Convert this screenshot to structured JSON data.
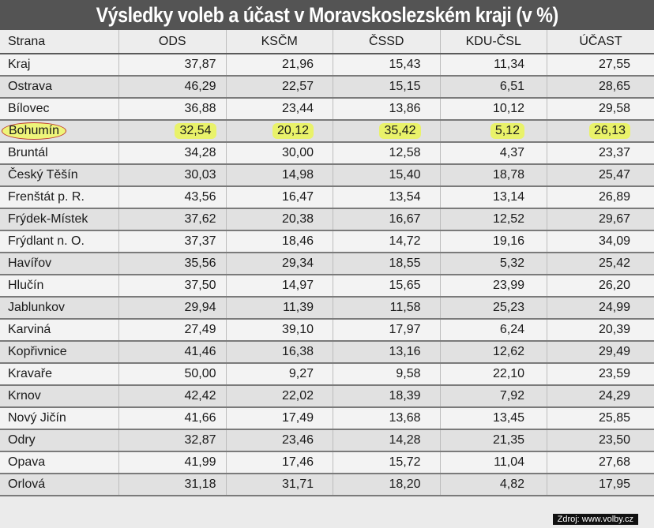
{
  "title": "Výsledky voleb a účast v Moravskoslezském kraji (v %)",
  "columns": [
    "Strana",
    "ODS",
    "KSČM",
    "ČSSD",
    "KDU-ČSL",
    "ÚČAST"
  ],
  "rows": [
    {
      "name": "Kraj",
      "v": [
        "37,87",
        "21,96",
        "15,43",
        "11,34",
        "27,55"
      ]
    },
    {
      "name": "Ostrava",
      "v": [
        "46,29",
        "22,57",
        "15,15",
        "6,51",
        "28,65"
      ]
    },
    {
      "name": "Bílovec",
      "v": [
        "36,88",
        "23,44",
        "13,86",
        "10,12",
        "29,58"
      ]
    },
    {
      "name": "Bohumín",
      "v": [
        "32,54",
        "20,12",
        "35,42",
        "5,12",
        "26,13"
      ]
    },
    {
      "name": "Bruntál",
      "v": [
        "34,28",
        "30,00",
        "12,58",
        "4,37",
        "23,37"
      ]
    },
    {
      "name": "Český Těšín",
      "v": [
        "30,03",
        "14,98",
        "15,40",
        "18,78",
        "25,47"
      ]
    },
    {
      "name": "Frenštát p. R.",
      "v": [
        "43,56",
        "16,47",
        "13,54",
        "13,14",
        "26,89"
      ]
    },
    {
      "name": "Frýdek-Místek",
      "v": [
        "37,62",
        "20,38",
        "16,67",
        "12,52",
        "29,67"
      ]
    },
    {
      "name": "Frýdlant n. O.",
      "v": [
        "37,37",
        "18,46",
        "14,72",
        "19,16",
        "34,09"
      ]
    },
    {
      "name": "Havířov",
      "v": [
        "35,56",
        "29,34",
        "18,55",
        "5,32",
        "25,42"
      ]
    },
    {
      "name": "Hlučín",
      "v": [
        "37,50",
        "14,97",
        "15,65",
        "23,99",
        "26,20"
      ]
    },
    {
      "name": "Jablunkov",
      "v": [
        "29,94",
        "11,39",
        "11,58",
        "25,23",
        "24,99"
      ]
    },
    {
      "name": "Karviná",
      "v": [
        "27,49",
        "39,10",
        "17,97",
        "6,24",
        "20,39"
      ]
    },
    {
      "name": "Kopřivnice",
      "v": [
        "41,46",
        "16,38",
        "13,16",
        "12,62",
        "29,49"
      ]
    },
    {
      "name": "Kravaře",
      "v": [
        "50,00",
        "9,27",
        "9,58",
        "22,10",
        "23,59"
      ]
    },
    {
      "name": "Krnov",
      "v": [
        "42,42",
        "22,02",
        "18,39",
        "7,92",
        "24,29"
      ]
    },
    {
      "name": "Nový Jičín",
      "v": [
        "41,66",
        "17,49",
        "13,68",
        "13,45",
        "25,85"
      ]
    },
    {
      "name": "Odry",
      "v": [
        "32,87",
        "23,46",
        "14,28",
        "21,35",
        "23,50"
      ]
    },
    {
      "name": "Opava",
      "v": [
        "41,99",
        "17,46",
        "15,72",
        "11,04",
        "27,68"
      ]
    },
    {
      "name": "Orlová",
      "v": [
        "31,18",
        "31,71",
        "18,20",
        "4,82",
        "17,95"
      ]
    }
  ],
  "source": "Zdroj: www.volby.cz",
  "colors": {
    "highlight": "#e9f26a",
    "circle": "#c0392b",
    "title_bg": "#545454"
  }
}
